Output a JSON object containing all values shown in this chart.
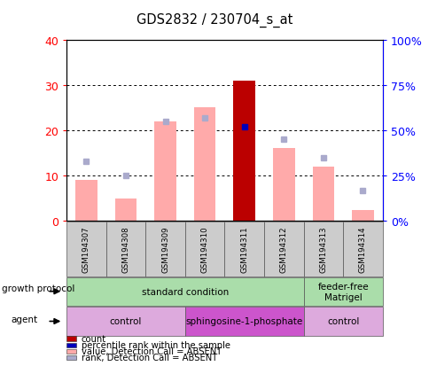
{
  "title": "GDS2832 / 230704_s_at",
  "samples": [
    "GSM194307",
    "GSM194308",
    "GSM194309",
    "GSM194310",
    "GSM194311",
    "GSM194312",
    "GSM194313",
    "GSM194314"
  ],
  "bar_values": [
    9,
    5,
    22,
    25,
    31,
    16,
    12,
    2.5
  ],
  "bar_colors": [
    "#ffaaaa",
    "#ffaaaa",
    "#ffaaaa",
    "#ffaaaa",
    "#bb0000",
    "#ffaaaa",
    "#ffaaaa",
    "#ffaaaa"
  ],
  "rank_squares_pct": [
    33,
    25,
    55,
    57,
    52,
    45,
    35,
    17
  ],
  "rank_colors": [
    "#aaaacc",
    "#aaaacc",
    "#aaaacc",
    "#aaaacc",
    "#0000bb",
    "#aaaacc",
    "#aaaacc",
    "#aaaacc"
  ],
  "ylim_left": [
    0,
    40
  ],
  "ylim_right": [
    0,
    100
  ],
  "yticks_left": [
    0,
    10,
    20,
    30,
    40
  ],
  "ytick_labels_left": [
    "0",
    "10",
    "20",
    "30",
    "40"
  ],
  "yticks_right": [
    0,
    25,
    50,
    75,
    100
  ],
  "ytick_labels_right": [
    "0%",
    "25%",
    "50%",
    "75%",
    "100%"
  ],
  "gp_groups": [
    {
      "label": "standard condition",
      "start": 0,
      "end": 6,
      "color": "#aaddaa"
    },
    {
      "label": "feeder-free\nMatrigel",
      "start": 6,
      "end": 8,
      "color": "#aaddaa"
    }
  ],
  "ag_groups": [
    {
      "label": "control",
      "start": 0,
      "end": 3,
      "color": "#ddaadd"
    },
    {
      "label": "sphingosine-1-phosphate",
      "start": 3,
      "end": 6,
      "color": "#cc55cc"
    },
    {
      "label": "control",
      "start": 6,
      "end": 8,
      "color": "#ddaadd"
    }
  ],
  "growth_protocol_label": "growth protocol",
  "agent_label": "agent",
  "legend_items": [
    {
      "color": "#bb0000",
      "label": "count"
    },
    {
      "color": "#0000bb",
      "label": "percentile rank within the sample"
    },
    {
      "color": "#ffaaaa",
      "label": "value, Detection Call = ABSENT"
    },
    {
      "color": "#aaaacc",
      "label": "rank, Detection Call = ABSENT"
    }
  ]
}
